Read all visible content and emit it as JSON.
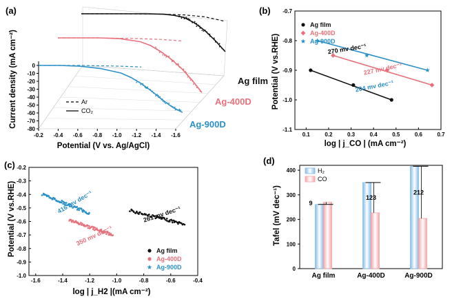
{
  "panels": {
    "a": {
      "label": "(a)",
      "ylabel": "Current density (mA cm⁻²)",
      "xlabel": "Potential (V vs. Ag/AgCl)",
      "legend": [
        {
          "name": "Ar",
          "style": "dashed"
        },
        {
          "name": "CO₂",
          "style": "solid"
        }
      ],
      "samples": [
        "Ag film",
        "Ag-400D",
        "Ag-900D"
      ]
    },
    "b": {
      "label": "(b)",
      "ylabel": "Potential (V vs.RHE)",
      "xlabel": "log | j_CO | (mA cm⁻²)",
      "annotations": [
        "270 mv dec⁻¹",
        "227 mv dec⁻¹",
        "204 mv dec⁻¹"
      ]
    },
    "c": {
      "label": "(c)",
      "ylabel": "Potential (V vs.RHE)",
      "xlabel": "log | j_H2 |(mA cm⁻²)",
      "annotations": [
        "416 mv dec⁻¹",
        "350 mv dec⁻¹",
        "261 mv dec⁻¹"
      ]
    },
    "d": {
      "label": "(d)",
      "ylabel": "Tafel (mV dec⁻¹)",
      "annotations": [
        "9",
        "123",
        "212"
      ]
    }
  },
  "colors": {
    "ag_film": "#111111",
    "ag_400d": "#e8707a",
    "ag_900d": "#2b90c8",
    "h2_bar": "#86bde8",
    "co_bar": "#f5a5a8"
  },
  "chart_data": [
    {
      "type": "line",
      "panel": "a",
      "x_axis": {
        "label": "Potential (V vs. Ag/AgCl)",
        "ticks": [
          "-0.2",
          "-0.4",
          "-0.6",
          "-0.8",
          "-1.0",
          "-1.2",
          "-1.4",
          "-1.6"
        ],
        "range": [
          -0.2,
          -1.6
        ]
      },
      "y_axis": {
        "label": "Current density (mA cm-2)",
        "ticks": [
          "0",
          "-10",
          "-20",
          "-30",
          "-40",
          "-50",
          "-60",
          "-70",
          "-80"
        ],
        "range": [
          0,
          -80
        ]
      },
      "series": [
        {
          "name": "Ag film CO2",
          "style": "solid",
          "x": [
            -0.2,
            -0.4,
            -0.6,
            -0.8,
            -1.0,
            -1.1,
            -1.2,
            -1.3,
            -1.4,
            -1.5,
            -1.6
          ],
          "y": [
            0,
            0,
            0,
            0,
            -0.5,
            -2,
            -5,
            -12,
            -22,
            -35,
            -50
          ]
        },
        {
          "name": "Ag film Ar",
          "style": "dashed",
          "x": [
            -0.2,
            -0.6,
            -1.0,
            -1.2,
            -1.4,
            -1.6
          ],
          "y": [
            0,
            0,
            -0.5,
            -1.5,
            -4,
            -10
          ]
        },
        {
          "name": "Ag-400D CO2",
          "style": "solid",
          "x": [
            -0.2,
            -0.4,
            -0.6,
            -0.8,
            -1.0,
            -1.1,
            -1.2,
            -1.3,
            -1.4,
            -1.5,
            -1.6
          ],
          "y": [
            0,
            0,
            0,
            -1,
            -5,
            -10,
            -18,
            -28,
            -40,
            -55,
            -72
          ]
        },
        {
          "name": "Ag-400D Ar",
          "style": "dashed",
          "x": [
            -0.2,
            -0.6,
            -1.0,
            -1.2,
            -1.4
          ],
          "y": [
            0,
            0,
            -1,
            -2,
            -4
          ]
        },
        {
          "name": "Ag-900D CO2",
          "style": "solid",
          "x": [
            -0.2,
            -0.4,
            -0.6,
            -0.8,
            -1.0,
            -1.1,
            -1.2,
            -1.3,
            -1.4,
            -1.5,
            -1.6
          ],
          "y": [
            0,
            0,
            -1,
            -4,
            -10,
            -16,
            -24,
            -34,
            -45,
            -55,
            -62
          ]
        },
        {
          "name": "Ag-900D Ar",
          "style": "dashed",
          "x": [
            -0.2,
            -0.6,
            -1.0,
            -1.2
          ],
          "y": [
            0,
            0,
            -1,
            -2
          ]
        }
      ]
    },
    {
      "type": "scatter",
      "panel": "b",
      "x_axis": {
        "label": "log | jCO | (mA cm-2)",
        "ticks": [
          "0.1",
          "0.2",
          "0.3",
          "0.4",
          "0.5",
          "0.6",
          "0.7"
        ],
        "range": [
          0.05,
          0.7
        ]
      },
      "y_axis": {
        "label": "Potential (V vs.RHE)",
        "ticks": [
          "-1.1",
          "-1.0",
          "-0.9",
          "-0.8",
          "-0.7"
        ],
        "range": [
          -0.7,
          -1.1
        ]
      },
      "series": [
        {
          "name": "Ag film",
          "marker": "circle",
          "x": [
            0.12,
            0.31,
            0.48
          ],
          "y": [
            -0.9,
            -0.95,
            -1.0
          ]
        },
        {
          "name": "Ag-400D",
          "marker": "diamond",
          "x": [
            0.22,
            0.46,
            0.66
          ],
          "y": [
            -0.85,
            -0.9,
            -0.95
          ]
        },
        {
          "name": "Ag-900D",
          "marker": "star",
          "x": [
            0.15,
            0.37,
            0.64
          ],
          "y": [
            -0.8,
            -0.85,
            -0.9
          ]
        }
      ],
      "annotations": [
        {
          "text": "270 mv dec-1",
          "series": "Ag film"
        },
        {
          "text": "227 mv dec-1",
          "series": "Ag-400D"
        },
        {
          "text": "204 mv dec-1",
          "series": "Ag-900D"
        }
      ]
    },
    {
      "type": "scatter",
      "panel": "c",
      "x_axis": {
        "label": "log | jH2 |(mA cm-2)",
        "ticks": [
          "-1.6",
          "-1.4",
          "-1.2",
          "-1.0",
          "-0.8",
          "-0.6",
          "-0.4"
        ],
        "range": [
          -1.65,
          -0.4
        ]
      },
      "y_axis": {
        "label": "Potential (V vs.RHE)",
        "ticks": [
          "-0.2",
          "-0.3",
          "-0.4",
          "-0.5",
          "-0.6",
          "-0.7",
          "-0.8",
          "-0.9",
          "-1.0"
        ],
        "range": [
          -0.2,
          -1.0
        ]
      },
      "series": [
        {
          "name": "Ag film",
          "marker": "circle",
          "x": [
            -0.9,
            -0.5
          ],
          "y": [
            -0.52,
            -0.62
          ]
        },
        {
          "name": "Ag-400D",
          "marker": "diamond",
          "x": [
            -1.35,
            -1.03
          ],
          "y": [
            -0.59,
            -0.7
          ]
        },
        {
          "name": "Ag-900D",
          "marker": "star",
          "x": [
            -1.55,
            -1.2
          ],
          "y": [
            -0.4,
            -0.54
          ]
        }
      ],
      "annotations": [
        {
          "text": "416 mv dec-1",
          "series": "Ag-900D"
        },
        {
          "text": "350 mv dec-1",
          "series": "Ag-400D"
        },
        {
          "text": "261 mv dec-1",
          "series": "Ag film"
        }
      ]
    },
    {
      "type": "bar",
      "panel": "d",
      "categories": [
        "Ag film",
        "Ag-400D",
        "Ag-900D"
      ],
      "y_axis": {
        "label": "Tafel (mV dec-1)",
        "ticks": [
          "0",
          "100",
          "200",
          "300",
          "400"
        ],
        "range": [
          0,
          420
        ]
      },
      "series": [
        {
          "name": "H2",
          "values": [
            261,
            350,
            416
          ]
        },
        {
          "name": "CO",
          "values": [
            270,
            227,
            204
          ]
        }
      ],
      "differences": [
        "9",
        "123",
        "212"
      ]
    }
  ]
}
